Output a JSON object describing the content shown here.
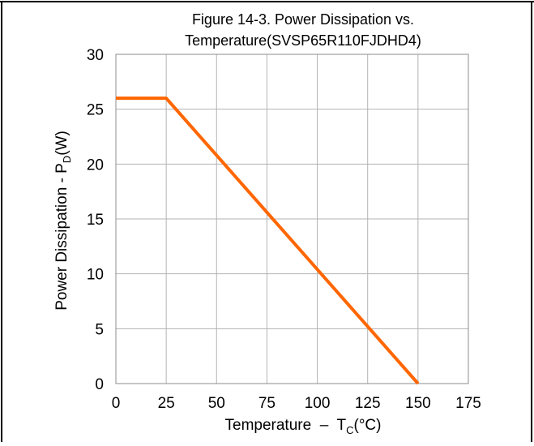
{
  "chart_data": {
    "type": "line",
    "title_line1": "Figure 14-3. Power Dissipation vs.",
    "title_line2": "Temperature(SVSP65R110FJDHD4)",
    "ylabel_main": "Power Dissipation - P",
    "ylabel_sub": "D",
    "ylabel_unit": "(W)",
    "xlabel_main": "Temperature  –  T",
    "xlabel_sub": "C",
    "xlabel_unit": "(°C)",
    "xlim": [
      0,
      175
    ],
    "ylim": [
      0,
      30
    ],
    "xticks": [
      0,
      25,
      50,
      75,
      100,
      125,
      150,
      175
    ],
    "yticks": [
      0,
      5,
      10,
      15,
      20,
      25,
      30
    ],
    "grid": true,
    "series": [
      {
        "color": "#ff6600",
        "points": [
          [
            0,
            26
          ],
          [
            25,
            26
          ],
          [
            150,
            0
          ]
        ]
      }
    ]
  }
}
